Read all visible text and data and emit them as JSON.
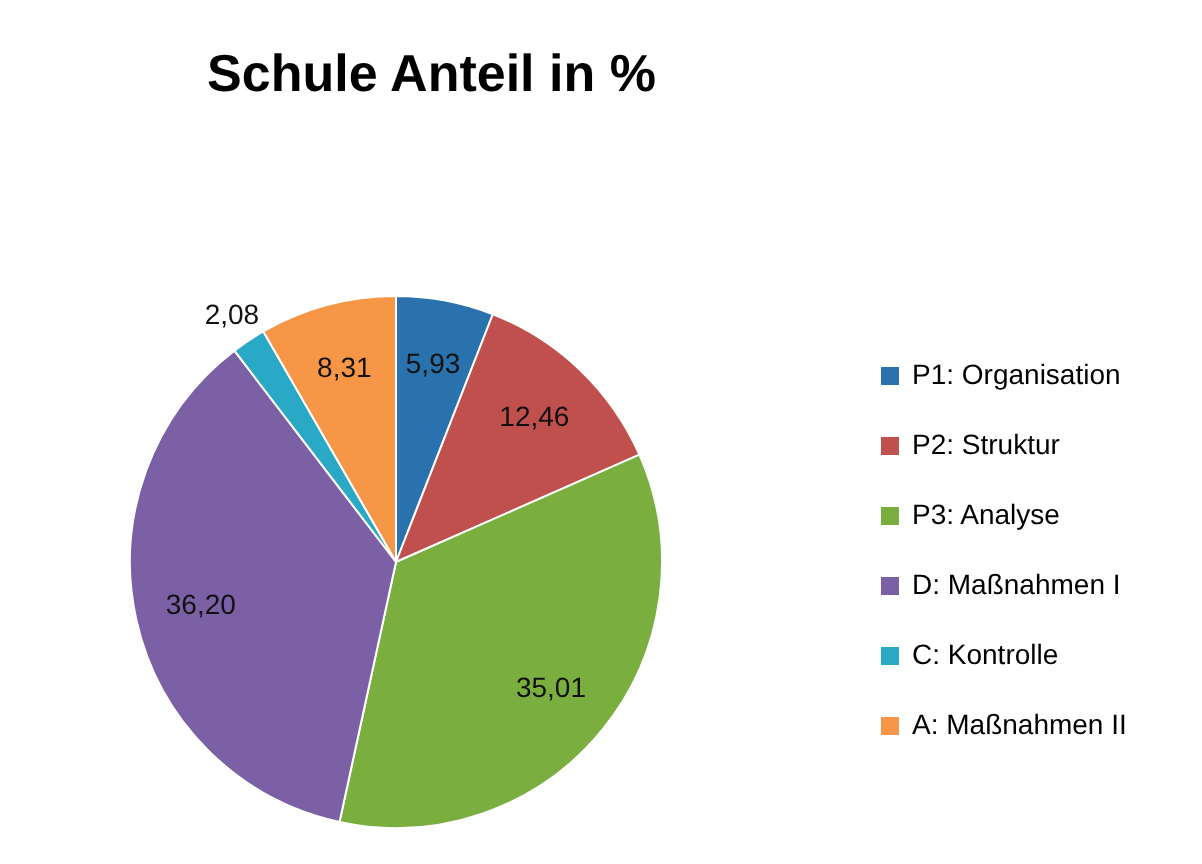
{
  "chart_data": {
    "type": "pie",
    "title": "Schule Anteil in %",
    "categories": [
      "P1: Organisation",
      "P2: Struktur",
      "P3: Analyse",
      "D: Maßnahmen I",
      "C: Kontrolle",
      "A: Maßnahmen II"
    ],
    "values": [
      5.93,
      12.46,
      35.01,
      36.2,
      2.08,
      8.31
    ],
    "value_labels": [
      "5,93",
      "12,46",
      "35,01",
      "36,20",
      "2,08",
      "8,31"
    ],
    "colors": [
      "#2a72ad",
      "#c0504d",
      "#7aae3f",
      "#7b60a6",
      "#2aa9c6",
      "#f79646"
    ],
    "legend": "right"
  }
}
